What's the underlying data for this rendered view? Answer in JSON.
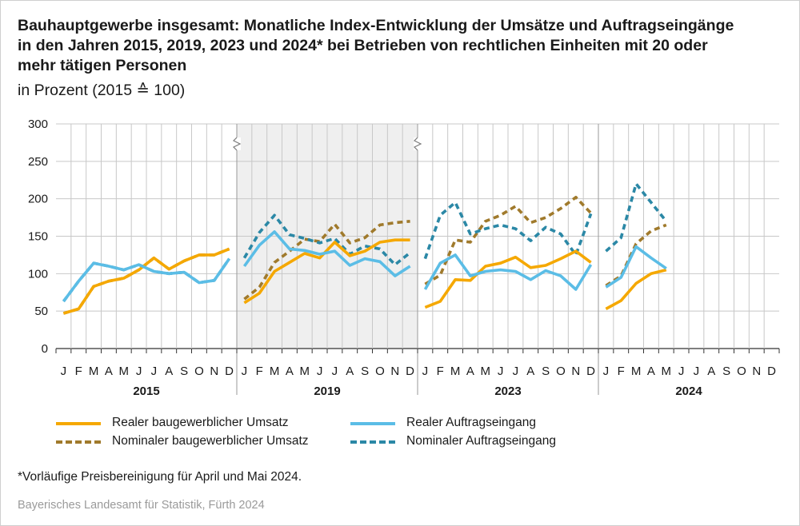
{
  "title": "Bauhauptgewerbe insgesamt: Monatliche Index-Entwicklung der Umsätze und Auftragseingänge in den Jahren 2015, 2019, 2023 und 2024* bei Betrieben von rechtlichen Einheiten mit 20 oder mehr tätigen Personen",
  "subtitle": "in Prozent (2015 ≙ 100)",
  "footnote": "*Vorläufige Preisbereinigung für April und Mai 2024.",
  "source": "Bayerisches Landesamt für Statistik, Fürth 2024",
  "colors": {
    "real_umsatz": "#f5a800",
    "nominal_umsatz": "#a07a2c",
    "real_auftrag": "#5bbde6",
    "nominal_auftrag": "#2b88a6",
    "shade": "#efefef",
    "grid": "#c8c8c8"
  },
  "chart_data": {
    "type": "line",
    "title": "",
    "ylim": [
      0,
      300
    ],
    "yticks": [
      0,
      50,
      100,
      150,
      200,
      250,
      300
    ],
    "grid": true,
    "legend_position": "bottom",
    "shaded_year": "2019",
    "month_labels": [
      "J",
      "F",
      "M",
      "A",
      "M",
      "J",
      "J",
      "A",
      "S",
      "O",
      "N",
      "D"
    ],
    "years": [
      "2015",
      "2019",
      "2023",
      "2024"
    ],
    "series": [
      {
        "name": "Realer baugewerblicher Umsatz",
        "style": "solid",
        "color": "#f5a800",
        "values": [
          [
            47,
            53,
            83,
            90,
            94,
            105,
            121,
            106,
            117,
            125,
            125,
            133
          ],
          [
            61,
            74,
            103,
            115,
            127,
            121,
            142,
            124,
            130,
            142,
            145,
            145
          ],
          [
            55,
            63,
            92,
            91,
            110,
            114,
            122,
            108,
            111,
            120,
            130,
            115
          ],
          [
            53,
            64,
            87,
            100,
            105,
            null,
            null,
            null,
            null,
            null,
            null,
            null
          ]
        ]
      },
      {
        "name": "Nominaler baugewerblicher Umsatz",
        "style": "dashed",
        "color": "#a07a2c",
        "values": [
          [
            47,
            53,
            83,
            90,
            94,
            105,
            121,
            106,
            117,
            125,
            125,
            133
          ],
          [
            66,
            82,
            115,
            130,
            146,
            143,
            166,
            141,
            148,
            165,
            168,
            170
          ],
          [
            86,
            98,
            145,
            142,
            170,
            178,
            190,
            168,
            175,
            187,
            202,
            181
          ],
          [
            84,
            97,
            140,
            157,
            165,
            null,
            null,
            null,
            null,
            null,
            null,
            null
          ]
        ]
      },
      {
        "name": "Realer Auftragseingang",
        "style": "solid",
        "color": "#5bbde6",
        "values": [
          [
            63,
            90,
            114,
            110,
            105,
            112,
            103,
            100,
            102,
            88,
            91,
            120
          ],
          [
            110,
            138,
            156,
            133,
            131,
            126,
            130,
            111,
            120,
            116,
            97,
            110
          ],
          [
            79,
            114,
            125,
            97,
            103,
            105,
            103,
            92,
            104,
            97,
            79,
            112
          ],
          [
            82,
            95,
            136,
            121,
            107,
            null,
            null,
            null,
            null,
            null,
            null,
            null
          ]
        ]
      },
      {
        "name": "Nominaler Auftragseingang",
        "style": "dashed",
        "color": "#2b88a6",
        "values": [
          [
            63,
            90,
            114,
            110,
            105,
            112,
            103,
            100,
            102,
            88,
            91,
            120
          ],
          [
            121,
            155,
            178,
            152,
            147,
            141,
            147,
            126,
            137,
            133,
            112,
            128
          ],
          [
            120,
            178,
            195,
            153,
            160,
            165,
            160,
            144,
            162,
            153,
            125,
            180
          ],
          [
            130,
            148,
            220,
            195,
            170,
            null,
            null,
            null,
            null,
            null,
            null,
            null
          ]
        ]
      }
    ]
  }
}
